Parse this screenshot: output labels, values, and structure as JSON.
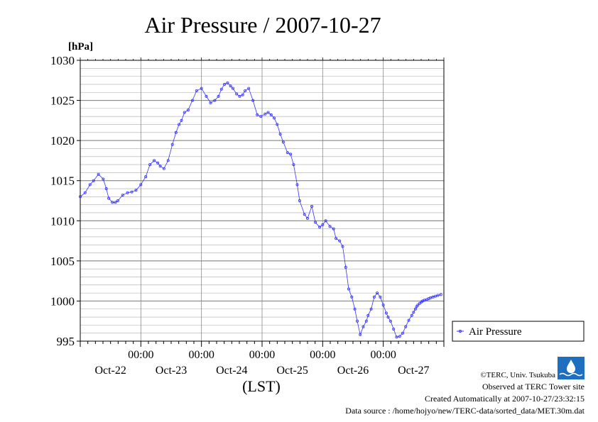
{
  "chart_data": {
    "type": "line",
    "title": "Air Pressure / 2007-10-27",
    "ylabel": "[hPa]",
    "xlabel": "(LST)",
    "ylim": [
      995,
      1030
    ],
    "xlim": [
      0,
      6.0
    ],
    "y_ticks": [
      995,
      1000,
      1005,
      1010,
      1015,
      1020,
      1025,
      1030
    ],
    "y_tick_labels": [
      "995",
      "1000",
      "1005",
      "1010",
      "1015",
      "1020",
      "1025",
      "1030"
    ],
    "x_ticks": [
      1,
      2,
      3,
      4,
      5
    ],
    "x_tick_time_labels": [
      "00:00",
      "00:00",
      "00:00",
      "00:00",
      "00:00"
    ],
    "x_date_labels": [
      "Oct-22",
      "Oct-23",
      "Oct-24",
      "Oct-25",
      "Oct-26",
      "Oct-27"
    ],
    "grid": true,
    "legend_position": "right",
    "series": [
      {
        "name": "Air Pressure",
        "color": "#3333ff",
        "x": [
          0.0,
          0.08,
          0.16,
          0.22,
          0.3,
          0.38,
          0.43,
          0.47,
          0.53,
          0.58,
          0.62,
          0.7,
          0.78,
          0.85,
          0.92,
          1.0,
          1.08,
          1.15,
          1.22,
          1.28,
          1.32,
          1.38,
          1.45,
          1.52,
          1.58,
          1.63,
          1.67,
          1.72,
          1.78,
          1.85,
          1.92,
          2.0,
          2.08,
          2.15,
          2.22,
          2.28,
          2.33,
          2.38,
          2.43,
          2.48,
          2.52,
          2.58,
          2.63,
          2.68,
          2.72,
          2.78,
          2.85,
          2.92,
          2.98,
          3.05,
          3.1,
          3.15,
          3.2,
          3.25,
          3.3,
          3.35,
          3.42,
          3.47,
          3.52,
          3.58,
          3.62,
          3.7,
          3.75,
          3.82,
          3.88,
          3.95,
          4.0,
          4.05,
          4.12,
          4.18,
          4.22,
          4.28,
          4.33,
          4.38,
          4.43,
          4.48,
          4.53,
          4.57,
          4.62,
          4.67,
          4.72,
          4.75,
          4.8,
          4.85,
          4.9,
          4.95,
          5.0,
          5.05,
          5.08,
          5.12,
          5.17,
          5.22,
          5.27,
          5.32,
          5.37,
          5.42,
          5.47,
          5.5,
          5.53,
          5.55,
          5.57,
          5.6,
          5.63,
          5.65,
          5.68,
          5.72,
          5.75,
          5.78,
          5.82,
          5.86,
          5.9,
          5.95
        ],
        "values": [
          1013.0,
          1013.5,
          1014.5,
          1015.0,
          1015.8,
          1015.2,
          1014.0,
          1012.8,
          1012.3,
          1012.3,
          1012.5,
          1013.2,
          1013.5,
          1013.6,
          1013.8,
          1014.5,
          1015.5,
          1017.0,
          1017.5,
          1017.2,
          1016.8,
          1016.5,
          1017.5,
          1019.5,
          1021.0,
          1022.0,
          1022.5,
          1023.5,
          1023.8,
          1025.0,
          1026.2,
          1026.5,
          1025.5,
          1024.7,
          1025.0,
          1025.5,
          1026.4,
          1027.0,
          1027.2,
          1026.8,
          1026.5,
          1025.8,
          1025.5,
          1025.7,
          1026.2,
          1026.5,
          1025.0,
          1023.2,
          1023.0,
          1023.3,
          1023.5,
          1023.2,
          1022.8,
          1022.0,
          1020.8,
          1019.8,
          1018.5,
          1018.3,
          1017.0,
          1014.5,
          1012.5,
          1010.8,
          1010.3,
          1011.8,
          1009.8,
          1009.2,
          1009.5,
          1010.0,
          1009.3,
          1009.0,
          1007.8,
          1007.5,
          1006.8,
          1004.2,
          1001.5,
          1000.5,
          999.0,
          997.5,
          995.8,
          996.8,
          997.5,
          998.2,
          999.0,
          1000.5,
          1001.0,
          1000.5,
          999.5,
          998.5,
          998.0,
          997.5,
          996.5,
          995.5,
          995.6,
          996.0,
          996.8,
          997.6,
          998.2,
          998.6,
          999.0,
          999.3,
          999.5,
          999.7,
          999.9,
          1000.0,
          1000.1,
          1000.2,
          1000.3,
          1000.4,
          1000.5,
          1000.6,
          1000.7,
          1000.8
        ]
      }
    ]
  },
  "credits": {
    "copyright": "©TERC, Univ. Tsukuba",
    "observed": "Observed at TERC Tower site",
    "created": "Created Automatically at 2007-10-27/23:32:15",
    "source": "Data source : /home/hojyo/new/TERC-data/sorted_data/MET.30m.dat"
  },
  "logo": {
    "text": "TERC"
  }
}
